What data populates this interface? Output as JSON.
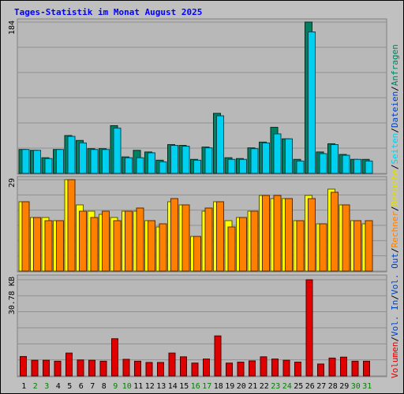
{
  "chart_data": {
    "type": "bar",
    "title": "Tages-Statistik im Monat August 2025",
    "days": [
      "1",
      "2",
      "3",
      "4",
      "5",
      "6",
      "7",
      "8",
      "9",
      "10",
      "11",
      "12",
      "13",
      "14",
      "15",
      "16",
      "17",
      "18",
      "19",
      "20",
      "21",
      "22",
      "23",
      "24",
      "25",
      "26",
      "27",
      "28",
      "29",
      "30",
      "31"
    ],
    "weekend_days": [
      "2",
      "3",
      "9",
      "10",
      "16",
      "17",
      "23",
      "24",
      "30",
      "31"
    ],
    "panels": {
      "requests_files": {
        "max_label": "184",
        "ylim": [
          0,
          184
        ],
        "series": [
          {
            "name": "Anfragen",
            "color": "#008060",
            "values": [
              29,
              28,
              19,
              29,
              46,
              40,
              30,
              30,
              58,
              20,
              28,
              26,
              16,
              35,
              34,
              17,
              32,
              73,
              19,
              18,
              31,
              38,
              56,
              42,
              17,
              184,
              26,
              36,
              23,
              17,
              17
            ]
          },
          {
            "name": "Dateien",
            "color": "#00d0f0",
            "values": [
              29,
              28,
              18,
              29,
              45,
              37,
              29,
              29,
              55,
              19,
              19,
              25,
              14,
              34,
              33,
              16,
              31,
              70,
              17,
              17,
              30,
              37,
              48,
              42,
              15,
              172,
              24,
              35,
              22,
              17,
              15
            ]
          }
        ]
      },
      "visits": {
        "max_label": "29",
        "ylim": [
          0,
          29
        ],
        "series": [
          {
            "name": "Besuche",
            "color": "#ffff00",
            "values": [
              22,
              17,
              17,
              16,
              29,
              21,
              19,
              18,
              17,
              19,
              19,
              16,
              14,
              22,
              21,
              11,
              19,
              22,
              16,
              17,
              19,
              24,
              23,
              23,
              16,
              24,
              15,
              26,
              21,
              16,
              15
            ]
          },
          {
            "name": "Rechner",
            "color": "#ff8000",
            "values": [
              22,
              17,
              16,
              16,
              29,
              19,
              17,
              19,
              16,
              19,
              20,
              16,
              15,
              23,
              21,
              11,
              20,
              22,
              14,
              17,
              19,
              24,
              24,
              23,
              16,
              23,
              15,
              25,
              21,
              16,
              16
            ]
          }
        ]
      },
      "volume": {
        "max_label": "30.78 KB",
        "ylim": [
          0,
          30.78
        ],
        "series": [
          {
            "name": "Volumen",
            "color": "#e00000",
            "values": [
              6.2,
              5.0,
              5.0,
              4.7,
              7.3,
              5.1,
              5.0,
              4.7,
              11.9,
              5.3,
              4.7,
              4.3,
              4.3,
              7.3,
              6.1,
              4.1,
              5.4,
              12.8,
              4.1,
              4.4,
              4.8,
              6.1,
              5.4,
              5.0,
              4.4,
              30.78,
              3.8,
              5.7,
              6.0,
              4.7,
              4.7
            ]
          }
        ]
      }
    },
    "legend": [
      {
        "text": "Volumen",
        "color": "#e00000"
      },
      {
        "text": "Vol. In",
        "color": "#0040c0"
      },
      {
        "text": "Vol. Out",
        "color": "#0040c0"
      },
      {
        "text": "Rechner",
        "color": "#ff8000"
      },
      {
        "text": "Besuche",
        "color": "#e0e000"
      },
      {
        "text": "Seiten",
        "color": "#00d0f0"
      },
      {
        "text": "Dateien",
        "color": "#0040c0"
      },
      {
        "text": "Anfragen",
        "color": "#008060"
      }
    ],
    "legend_separator": "/"
  }
}
